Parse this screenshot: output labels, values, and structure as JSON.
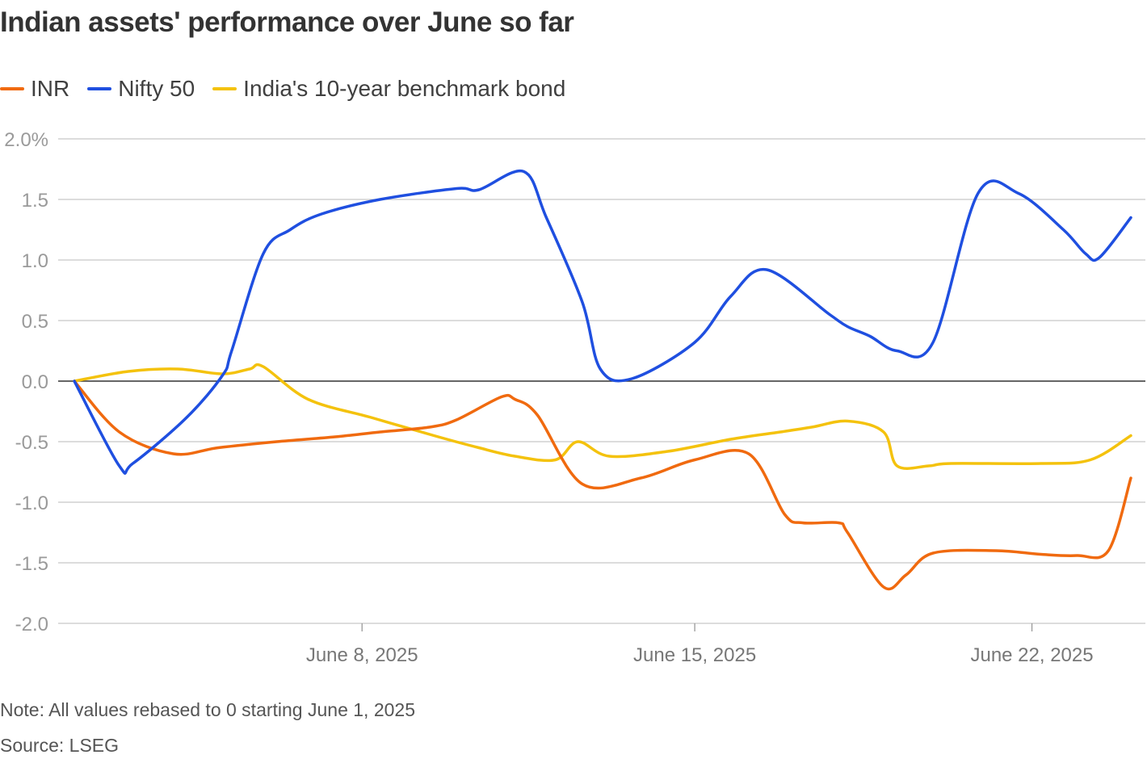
{
  "title": "Indian assets' performance over June so far",
  "note": "Note: All values rebased to 0 starting June 1, 2025",
  "source": "Source: LSEG",
  "chart_data": {
    "type": "line",
    "title": "Indian assets' performance over June so far",
    "xlabel": "",
    "ylabel": "",
    "ylim": [
      -2.0,
      2.0
    ],
    "yticks": [
      2.0,
      1.5,
      1.0,
      0.5,
      0.0,
      -0.5,
      -1.0,
      -1.5,
      -2.0
    ],
    "ytick_labels": [
      "2.0%",
      "1.5",
      "1.0",
      "0.5",
      "0.0",
      "-0.5",
      "-1.0",
      "-1.5",
      "-2.0"
    ],
    "xlim": [
      1,
      24.5
    ],
    "xticks": [
      {
        "x": 7.4,
        "label": "June 8, 2025"
      },
      {
        "x": 14.8,
        "label": "June 15, 2025"
      },
      {
        "x": 22.3,
        "label": "June 22, 2025"
      }
    ],
    "legend_position": "top-left",
    "grid": true,
    "series": [
      {
        "name": "INR",
        "color": "#f06a0f",
        "x": [
          1.0,
          2.0,
          3.2,
          4.2,
          5.5,
          6.8,
          7.8,
          8.9,
          9.5,
          10.5,
          10.8,
          11.3,
          12.3,
          13.6,
          14.8,
          16.0,
          16.8,
          17.2,
          18.0,
          18.2,
          19.0,
          19.5,
          20.1,
          21.5,
          22.5,
          23.3,
          24.0,
          24.5
        ],
        "values": [
          0.0,
          -0.42,
          -0.6,
          -0.55,
          -0.5,
          -0.46,
          -0.42,
          -0.38,
          -0.32,
          -0.13,
          -0.15,
          -0.28,
          -0.85,
          -0.8,
          -0.65,
          -0.6,
          -1.1,
          -1.17,
          -1.17,
          -1.25,
          -1.7,
          -1.6,
          -1.42,
          -1.4,
          -1.43,
          -1.44,
          -1.4,
          -0.8
        ]
      },
      {
        "name": "Nifty 50",
        "color": "#1f4fe0",
        "x": [
          1.0,
          2.0,
          2.3,
          3.5,
          4.3,
          4.5,
          5.2,
          5.8,
          6.5,
          7.8,
          9.5,
          10.0,
          11.0,
          11.5,
          12.3,
          12.7,
          13.4,
          14.8,
          15.6,
          16.4,
          17.8,
          18.2,
          18.7,
          19.3,
          20.1,
          21.1,
          22.0,
          23.0,
          23.5,
          23.8,
          24.5
        ],
        "values": [
          0.0,
          -0.7,
          -0.68,
          -0.3,
          0.05,
          0.25,
          1.05,
          1.25,
          1.38,
          1.5,
          1.59,
          1.58,
          1.73,
          1.35,
          0.65,
          0.1,
          0.02,
          0.32,
          0.7,
          0.92,
          0.55,
          0.45,
          0.37,
          0.25,
          0.32,
          1.55,
          1.55,
          1.25,
          1.05,
          1.02,
          1.35
        ]
      },
      {
        "name": "India's 10-year benchmark bond",
        "color": "#f4c20d",
        "x": [
          1.0,
          2.2,
          3.3,
          4.3,
          4.9,
          5.2,
          6.2,
          7.6,
          9.0,
          10.0,
          10.8,
          11.7,
          12.2,
          12.9,
          14.2,
          15.6,
          16.7,
          17.4,
          18.2,
          19.0,
          19.3,
          20.0,
          20.5,
          22.5,
          23.6,
          24.5
        ],
        "values": [
          0.0,
          0.08,
          0.1,
          0.06,
          0.1,
          0.12,
          -0.15,
          -0.3,
          -0.45,
          -0.55,
          -0.62,
          -0.65,
          -0.5,
          -0.62,
          -0.58,
          -0.48,
          -0.42,
          -0.38,
          -0.33,
          -0.42,
          -0.7,
          -0.7,
          -0.68,
          -0.68,
          -0.65,
          -0.45
        ]
      }
    ]
  }
}
